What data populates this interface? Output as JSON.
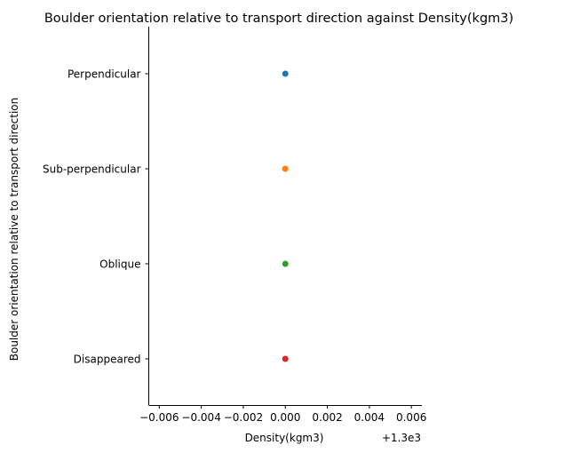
{
  "chart_data": {
    "type": "scatter",
    "title": "Boulder orientation relative to transport direction against Density(kgm3)",
    "xlabel": "Density(kgm3)",
    "ylabel": "Boulder orientation relative to transport direction",
    "x_offset_label": "+1.3e3",
    "xlim": [
      -0.0065,
      0.0065
    ],
    "x_ticks": [
      -0.006,
      -0.004,
      -0.002,
      0.0,
      0.002,
      0.004,
      0.006
    ],
    "x_tick_labels": [
      "−0.006",
      "−0.004",
      "−0.002",
      "0.000",
      "0.002",
      "0.004",
      "0.006"
    ],
    "categories": [
      "Perpendicular",
      "Sub-perpendicular",
      "Oblique",
      "Disappeared"
    ],
    "points": [
      {
        "category": "Perpendicular",
        "x": 1300,
        "color": "#1f77b4"
      },
      {
        "category": "Sub-perpendicular",
        "x": 1300,
        "color": "#ff7f0e"
      },
      {
        "category": "Oblique",
        "x": 1300,
        "color": "#2ca02c"
      },
      {
        "category": "Disappeared",
        "x": 1300,
        "color": "#d62728"
      }
    ],
    "grid": false
  }
}
